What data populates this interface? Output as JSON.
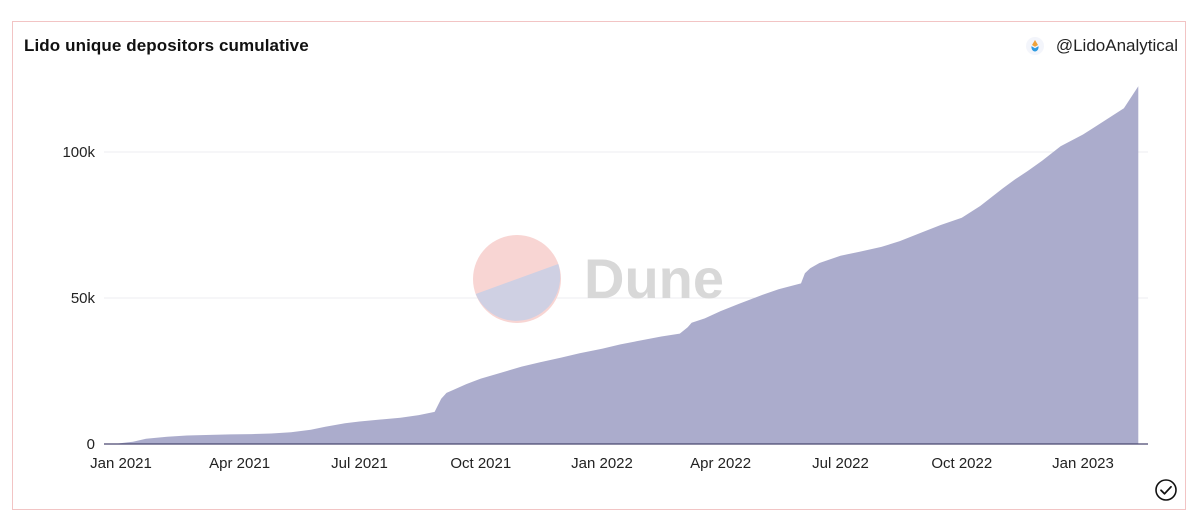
{
  "header": {
    "title": "Lido unique depositors cumulative",
    "author": "@LidoAnalytical"
  },
  "watermark": {
    "text": "Dune"
  },
  "colors": {
    "area": "#a9aacb",
    "baseline": "#4a4870",
    "grid": "#ececf1",
    "logo_top": "#f8d5d3",
    "logo_bottom": "#cfd0e3",
    "watermark_text": "#d8d8d8"
  },
  "chart_data": {
    "type": "area",
    "title": "Lido unique depositors cumulative",
    "xlabel": "",
    "ylabel": "",
    "x_ticks": [
      "Jan 2021",
      "Apr 2021",
      "Jul 2021",
      "Oct 2021",
      "Jan 2022",
      "Apr 2022",
      "Jul 2022",
      "Oct 2022",
      "Jan 2023"
    ],
    "y_ticks": [
      "0",
      "50k",
      "100k"
    ],
    "ylim": [
      0,
      125000
    ],
    "grid": true,
    "x": [
      "2020-12-27",
      "2021-01-10",
      "2021-01-20",
      "2021-02-05",
      "2021-02-20",
      "2021-03-10",
      "2021-03-25",
      "2021-04-10",
      "2021-04-25",
      "2021-05-10",
      "2021-05-25",
      "2021-06-05",
      "2021-06-20",
      "2021-07-01",
      "2021-07-15",
      "2021-08-01",
      "2021-08-15",
      "2021-08-27",
      "2021-09-01",
      "2021-09-05",
      "2021-09-10",
      "2021-09-20",
      "2021-10-01",
      "2021-10-15",
      "2021-11-01",
      "2021-11-15",
      "2021-12-01",
      "2021-12-15",
      "2022-01-01",
      "2022-01-15",
      "2022-02-01",
      "2022-02-15",
      "2022-03-01",
      "2022-03-07",
      "2022-03-10",
      "2022-03-20",
      "2022-04-01",
      "2022-04-15",
      "2022-05-01",
      "2022-05-15",
      "2022-06-01",
      "2022-06-04",
      "2022-06-08",
      "2022-06-15",
      "2022-07-01",
      "2022-07-15",
      "2022-08-01",
      "2022-08-15",
      "2022-09-01",
      "2022-09-15",
      "2022-10-01",
      "2022-10-15",
      "2022-11-01",
      "2022-11-10",
      "2022-11-20",
      "2022-12-01",
      "2022-12-15",
      "2023-01-01",
      "2023-01-15",
      "2023-02-01",
      "2023-02-12"
    ],
    "values": [
      0,
      800,
      1800,
      2500,
      2900,
      3100,
      3300,
      3400,
      3600,
      4000,
      4900,
      5900,
      7100,
      7700,
      8300,
      9000,
      9900,
      11000,
      15500,
      17500,
      18500,
      20500,
      22400,
      24200,
      26500,
      28000,
      29600,
      31100,
      32600,
      34100,
      35600,
      36800,
      37800,
      40000,
      41500,
      43000,
      45500,
      48000,
      50800,
      53000,
      55000,
      58500,
      60200,
      62000,
      64500,
      65800,
      67500,
      69500,
      72500,
      75000,
      77500,
      81500,
      87500,
      90500,
      93500,
      97000,
      102000,
      106000,
      110000,
      115000,
      122500
    ]
  }
}
